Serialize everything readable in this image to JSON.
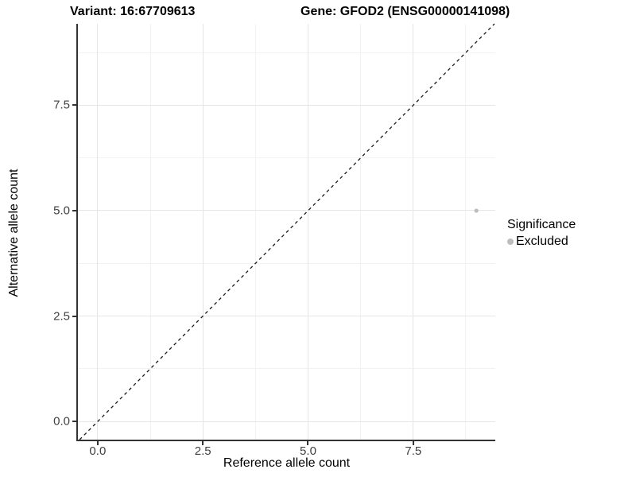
{
  "titles": {
    "variant": "Variant: 16:67709613",
    "gene": "Gene: GFOD2 (ENSG00000141098)"
  },
  "axes": {
    "x_label": "Reference allele count",
    "y_label": "Alternative allele count"
  },
  "legend": {
    "title": "Significance",
    "items": [
      {
        "label": "Excluded",
        "color": "#bdbdbd"
      }
    ]
  },
  "colors": {
    "background": "#ffffff",
    "grid_major": "#e6e6e6",
    "grid_minor": "#f2f2f2",
    "axis_line": "#333333",
    "tick_text": "#404040",
    "title_text": "#000000",
    "diagonal_line": "#1a1a1a",
    "point": "#bdbdbd"
  },
  "chart_data": {
    "type": "scatter",
    "title": "Variant: 16:67709613   Gene: GFOD2 (ENSG00000141098)",
    "xlabel": "Reference allele count",
    "ylabel": "Alternative allele count",
    "xlim": [
      -0.47,
      9.45
    ],
    "ylim": [
      -0.43,
      9.43
    ],
    "x_ticks": [
      0.0,
      2.5,
      5.0,
      7.5
    ],
    "x_tick_labels": [
      "0.0",
      "2.5",
      "5.0",
      "7.5"
    ],
    "y_ticks": [
      0.0,
      2.5,
      5.0,
      7.5
    ],
    "y_tick_labels": [
      "0.0",
      "2.5",
      "5.0",
      "7.5"
    ],
    "x_minor_ticks": [
      1.25,
      3.75,
      6.25,
      8.75
    ],
    "y_minor_ticks": [
      1.25,
      3.75,
      6.25,
      8.75
    ],
    "grid": true,
    "legend_position": "right",
    "series": [
      {
        "name": "Excluded",
        "color": "#bdbdbd",
        "points": [
          {
            "x": 9,
            "y": 5
          }
        ],
        "point_radius": 2.6
      }
    ],
    "reference_line": {
      "type": "abline",
      "intercept": 0,
      "slope": 1,
      "style": "dashed",
      "color": "#1a1a1a"
    }
  }
}
